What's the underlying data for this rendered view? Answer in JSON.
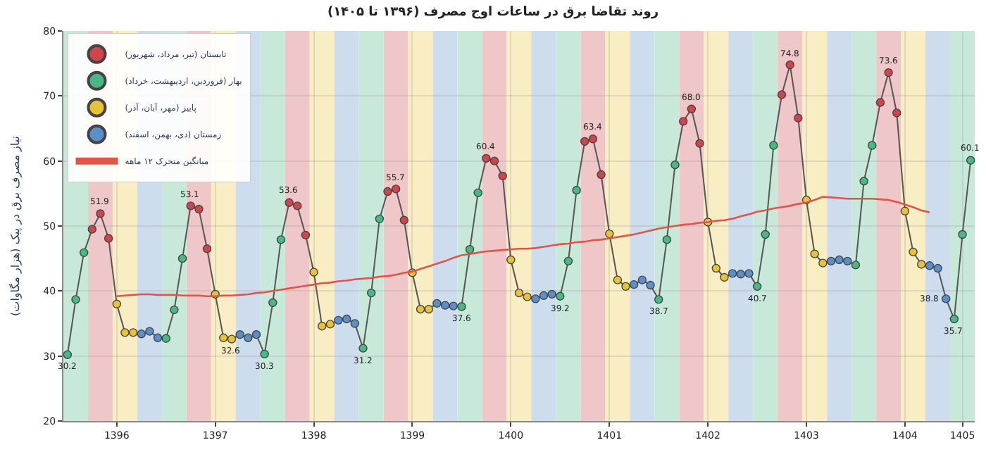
{
  "chart_data": {
    "type": "line",
    "title": "روند تقاضا برق در ساعات اوج مصرف (۱۳۹۶ تا ۱۴۰۵)",
    "ylabel": "نیاز مصرف برق در پیک (هزار مگاوات)",
    "categories": [
      null,
      null,
      null,
      null,
      null,
      null,
      "1396",
      null,
      null,
      null,
      null,
      null,
      null,
      null,
      null,
      null,
      null,
      null,
      "1397",
      null,
      null,
      null,
      null,
      null,
      null,
      null,
      null,
      null,
      null,
      null,
      "1398",
      null,
      null,
      null,
      null,
      null,
      null,
      null,
      null,
      null,
      null,
      null,
      "1399",
      null,
      null,
      null,
      null,
      null,
      null,
      null,
      null,
      null,
      null,
      null,
      "1400",
      null,
      null,
      null,
      null,
      null,
      null,
      null,
      null,
      null,
      null,
      null,
      "1401",
      null,
      null,
      null,
      null,
      null,
      null,
      null,
      null,
      null,
      null,
      null,
      "1402",
      null,
      null,
      null,
      null,
      null,
      null,
      null,
      null,
      null,
      null,
      null,
      "1403",
      null,
      null,
      null,
      null,
      null,
      null,
      null,
      null,
      null,
      null,
      null,
      "1404",
      null,
      null,
      null,
      null,
      null,
      null,
      "1405",
      null
    ],
    "ylim": [
      20,
      80
    ],
    "yticks": [
      20,
      30,
      40,
      50,
      60,
      70,
      80
    ],
    "grid": true,
    "legend": "top left",
    "line_style": "solid",
    "series": [
      {
        "color": "#555555",
        "marker": "none",
        "values": [
          30.2,
          38.7,
          45.9,
          49.5,
          51.9,
          48.1,
          38.0,
          33.6,
          33.6,
          33.4,
          33.8,
          32.8,
          32.7,
          37.1,
          45.0,
          53.1,
          52.6,
          46.5,
          39.5,
          32.8,
          32.6,
          33.3,
          32.8,
          33.3,
          30.3,
          38.2,
          47.9,
          53.6,
          53.1,
          48.6,
          42.9,
          34.6,
          34.9,
          35.5,
          35.7,
          35.0,
          31.2,
          39.7,
          51.1,
          55.3,
          55.7,
          50.9,
          42.8,
          37.2,
          37.2,
          38.1,
          37.8,
          37.7,
          37.6,
          46.4,
          55.1,
          60.4,
          60.0,
          57.7,
          44.8,
          39.7,
          39.1,
          38.8,
          39.3,
          39.5,
          39.2,
          44.6,
          55.5,
          63.0,
          63.4,
          57.9,
          48.8,
          41.7,
          40.7,
          41.0,
          41.7,
          40.9,
          38.7,
          47.9,
          59.4,
          66.1,
          68.0,
          62.7,
          50.6,
          43.5,
          42.1,
          42.7,
          42.6,
          42.7,
          40.7,
          48.7,
          62.4,
          70.2,
          74.8,
          66.6,
          54.0,
          45.7,
          44.3,
          44.6,
          44.8,
          44.6,
          44.0,
          56.9,
          62.4,
          69.0,
          73.6,
          67.4,
          52.3,
          46.0,
          44.1,
          43.9,
          43.5,
          38.8,
          35.7,
          48.7,
          60.1
        ],
        "value_labels": [
          "30.2",
          null,
          null,
          null,
          "51.9",
          null,
          null,
          null,
          null,
          null,
          null,
          null,
          null,
          null,
          null,
          "53.1",
          null,
          null,
          null,
          null,
          "32.6",
          null,
          null,
          null,
          "30.3",
          null,
          null,
          "53.6",
          null,
          null,
          null,
          null,
          null,
          null,
          null,
          null,
          "31.2",
          null,
          null,
          null,
          "55.7",
          null,
          null,
          null,
          null,
          null,
          null,
          null,
          "37.6",
          null,
          null,
          "60.4",
          null,
          null,
          null,
          null,
          null,
          null,
          null,
          null,
          "39.2",
          null,
          null,
          null,
          "63.4",
          null,
          null,
          null,
          null,
          null,
          null,
          null,
          "38.7",
          null,
          null,
          null,
          "68.0",
          null,
          null,
          null,
          null,
          null,
          null,
          null,
          "40.7",
          null,
          null,
          null,
          "74.8",
          null,
          null,
          null,
          null,
          null,
          null,
          null,
          null,
          null,
          null,
          null,
          "73.6",
          null,
          null,
          null,
          null,
          null,
          null,
          "38.8",
          "35.7",
          null,
          "60.1"
        ]
      },
      {
        "type": "scatter",
        "marker": "circle",
        "name": "تابستان (تیر، مرداد، شهریور)",
        "color": "#d0454c",
        "values": [
          null,
          null,
          null,
          49.5,
          51.9,
          48.1,
          null,
          null,
          null,
          null,
          null,
          null,
          null,
          null,
          null,
          53.1,
          52.6,
          46.5,
          null,
          null,
          null,
          null,
          null,
          null,
          null,
          null,
          null,
          53.6,
          53.1,
          48.6,
          null,
          null,
          null,
          null,
          null,
          null,
          null,
          null,
          null,
          55.3,
          55.7,
          50.9,
          null,
          null,
          null,
          null,
          null,
          null,
          null,
          null,
          null,
          60.4,
          60.0,
          57.7,
          null,
          null,
          null,
          null,
          null,
          null,
          null,
          null,
          null,
          63.0,
          63.4,
          57.9,
          null,
          null,
          null,
          null,
          null,
          null,
          null,
          null,
          null,
          66.1,
          68.0,
          62.7,
          null,
          null,
          null,
          null,
          null,
          null,
          null,
          null,
          null,
          70.2,
          74.8,
          66.6,
          null,
          null,
          null,
          null,
          null,
          null,
          null,
          null,
          null,
          69.0,
          73.6,
          67.4,
          null,
          null,
          null,
          null,
          null,
          null,
          null,
          null,
          null
        ]
      },
      {
        "type": "scatter",
        "marker": "circle",
        "name": "بهار (فروردین، اردیبهشت، خرداد)",
        "color": "#48b884",
        "values": [
          30.2,
          38.7,
          45.9,
          null,
          null,
          null,
          null,
          null,
          null,
          null,
          null,
          null,
          32.7,
          37.1,
          45.0,
          null,
          null,
          null,
          null,
          null,
          null,
          null,
          null,
          null,
          30.3,
          38.2,
          47.9,
          null,
          null,
          null,
          null,
          null,
          null,
          null,
          null,
          null,
          31.2,
          39.7,
          51.1,
          null,
          null,
          null,
          null,
          null,
          null,
          null,
          null,
          null,
          37.6,
          46.4,
          55.1,
          null,
          null,
          null,
          null,
          null,
          null,
          null,
          null,
          null,
          39.2,
          44.6,
          55.5,
          null,
          null,
          null,
          null,
          null,
          null,
          null,
          null,
          null,
          38.7,
          47.9,
          59.4,
          null,
          null,
          null,
          null,
          null,
          null,
          null,
          null,
          null,
          40.7,
          48.7,
          62.4,
          null,
          null,
          null,
          null,
          null,
          null,
          null,
          null,
          null,
          44.0,
          56.9,
          62.4,
          null,
          null,
          null,
          null,
          null,
          null,
          null,
          null,
          null,
          35.7,
          48.7,
          60.1
        ]
      },
      {
        "type": "scatter",
        "marker": "circle",
        "name": "پاییز (مهر، آبان، آذر)",
        "color": "#e8c33a",
        "values": [
          null,
          null,
          null,
          null,
          null,
          null,
          38.0,
          33.6,
          33.6,
          null,
          null,
          null,
          null,
          null,
          null,
          null,
          null,
          null,
          39.5,
          32.8,
          32.6,
          null,
          null,
          null,
          null,
          null,
          null,
          null,
          null,
          null,
          42.9,
          34.6,
          34.9,
          null,
          null,
          null,
          null,
          null,
          null,
          null,
          null,
          null,
          42.8,
          37.2,
          37.2,
          null,
          null,
          null,
          null,
          null,
          null,
          null,
          null,
          null,
          44.8,
          39.7,
          39.1,
          null,
          null,
          null,
          null,
          null,
          null,
          null,
          null,
          null,
          48.8,
          41.7,
          40.7,
          null,
          null,
          null,
          null,
          null,
          null,
          null,
          null,
          null,
          50.6,
          43.5,
          42.1,
          null,
          null,
          null,
          null,
          null,
          null,
          null,
          null,
          null,
          54.0,
          45.7,
          44.3,
          null,
          null,
          null,
          null,
          null,
          null,
          null,
          null,
          null,
          52.3,
          46.0,
          44.1,
          null,
          null,
          null,
          null,
          null,
          null
        ]
      },
      {
        "type": "scatter",
        "marker": "circle",
        "name": "زمستان (دی، بهمن، اسفند)",
        "color": "#5b8fc7",
        "values": [
          null,
          null,
          null,
          null,
          null,
          null,
          null,
          null,
          null,
          33.4,
          33.8,
          32.8,
          null,
          null,
          null,
          null,
          null,
          null,
          null,
          null,
          null,
          33.3,
          32.8,
          33.3,
          null,
          null,
          null,
          null,
          null,
          null,
          null,
          null,
          null,
          35.5,
          35.7,
          35.0,
          null,
          null,
          null,
          null,
          null,
          null,
          null,
          null,
          null,
          38.1,
          37.8,
          37.7,
          null,
          null,
          null,
          null,
          null,
          null,
          null,
          null,
          null,
          38.8,
          39.3,
          39.5,
          null,
          null,
          null,
          null,
          null,
          null,
          null,
          null,
          null,
          41.0,
          41.7,
          40.9,
          null,
          null,
          null,
          null,
          null,
          null,
          null,
          null,
          null,
          42.7,
          42.6,
          42.7,
          null,
          null,
          null,
          null,
          null,
          null,
          null,
          null,
          null,
          44.6,
          44.8,
          44.6,
          null,
          null,
          null,
          null,
          null,
          null,
          null,
          null,
          null,
          43.9,
          43.5,
          38.8,
          null,
          null,
          null
        ]
      },
      {
        "name": "میانگین متحرک ۱۲ ماهه",
        "color": "#e05545",
        "marker": "none",
        "values": [
          null,
          null,
          null,
          null,
          null,
          null,
          39.2,
          39.3,
          39.4,
          39.5,
          39.5,
          39.4,
          39.4,
          39.4,
          39.3,
          39.3,
          39.3,
          39.2,
          39.2,
          39.3,
          39.3,
          39.4,
          39.5,
          39.7,
          39.8,
          40.0,
          40.2,
          40.4,
          40.6,
          40.8,
          41.0,
          41.2,
          41.3,
          41.5,
          41.6,
          41.8,
          41.9,
          42.0,
          42.2,
          42.3,
          42.5,
          42.8,
          43.0,
          43.4,
          43.8,
          44.2,
          44.6,
          45.1,
          45.5,
          45.7,
          45.9,
          46.1,
          46.2,
          46.3,
          46.4,
          46.5,
          46.5,
          46.6,
          46.8,
          47.0,
          47.2,
          47.3,
          47.5,
          47.6,
          47.8,
          47.9,
          48.1,
          48.3,
          48.5,
          48.7,
          49.0,
          49.3,
          49.6,
          49.8,
          50.0,
          50.2,
          50.3,
          50.5,
          50.6,
          50.8,
          50.9,
          51.1,
          51.5,
          51.8,
          52.2,
          52.4,
          52.7,
          52.9,
          53.1,
          53.4,
          53.6,
          54.0,
          54.5,
          54.4,
          54.3,
          54.2,
          54.2,
          54.2,
          54.2,
          54.1,
          54.0,
          53.7,
          53.3,
          52.9,
          52.4,
          52.1,
          null,
          null,
          null,
          null,
          null
        ]
      }
    ]
  }
}
